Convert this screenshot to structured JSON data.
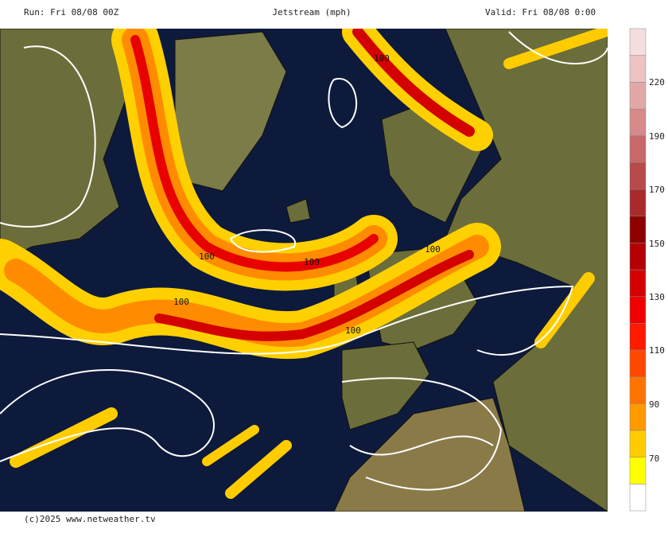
{
  "header": {
    "run": "Run: Fri 08/08 00Z",
    "title": "Jetstream (mph)",
    "valid": "Valid: Fri 08/08 0:00"
  },
  "colorbar": {
    "colors": [
      "#ffffff",
      "#ffff00",
      "#ffcc00",
      "#ff9900",
      "#ff7400",
      "#ff4800",
      "#ff1a00",
      "#ee0000",
      "#d40000",
      "#b40000",
      "#8c0000",
      "#a82a2a",
      "#b84a4a",
      "#c86868",
      "#d68a8a",
      "#e2a8a8",
      "#ecc4c4",
      "#f6dede"
    ],
    "labels": [
      "70",
      "90",
      "110",
      "130",
      "150",
      "170",
      "190",
      "220"
    ]
  },
  "contour_labels": [
    "100",
    "100",
    "100",
    "100",
    "100",
    "100"
  ],
  "footer": "(c)2025 www.netweather.tv"
}
